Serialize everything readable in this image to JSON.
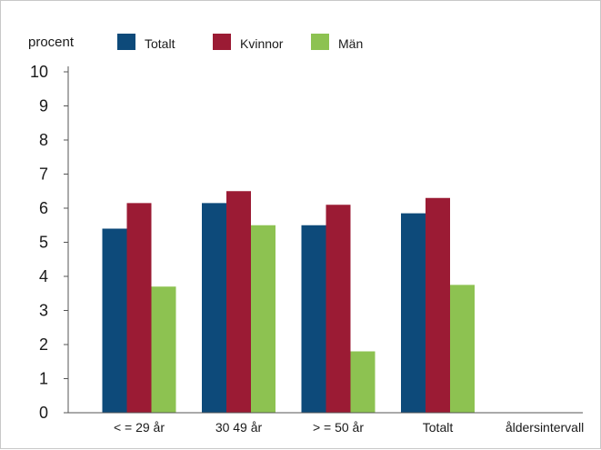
{
  "chart_data": {
    "type": "bar",
    "ylabel": "procent",
    "xlabel": "åldersintervall",
    "ylim": [
      0,
      10
    ],
    "yticks": [
      "0",
      "1",
      "2",
      "3",
      "4",
      "5",
      "6",
      "7",
      "8",
      "9",
      "10"
    ],
    "categories": [
      "< = 29 år",
      "30 49 år",
      "> = 50 år",
      "Totalt"
    ],
    "series": [
      {
        "name": "Totalt",
        "color": "#0d4a7a",
        "values": [
          5.4,
          6.15,
          5.5,
          5.85
        ]
      },
      {
        "name": "Kvinnor",
        "color": "#9b1b34",
        "values": [
          6.15,
          6.5,
          6.1,
          6.3
        ]
      },
      {
        "name": "Män",
        "color": "#8dc251",
        "values": [
          3.7,
          5.5,
          1.8,
          3.75
        ]
      }
    ],
    "grid": false,
    "legend_position": "top"
  }
}
